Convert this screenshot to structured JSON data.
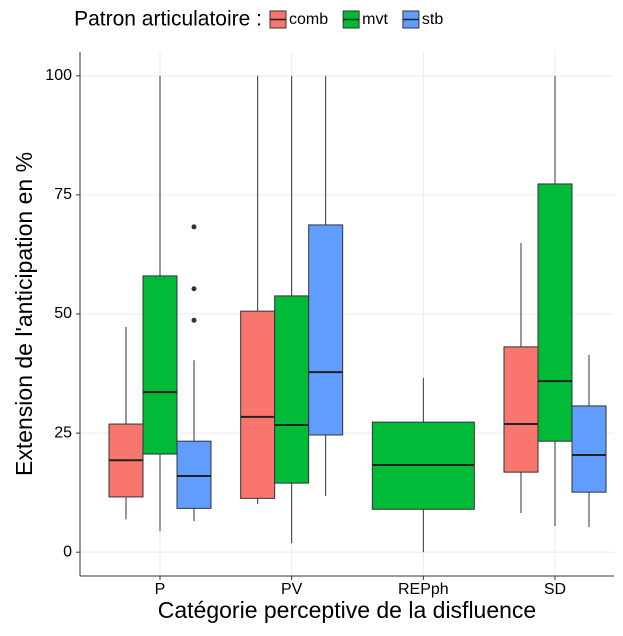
{
  "chart_data": {
    "type": "boxplot",
    "legend_title": "Patron articulatoire :",
    "x_label": "Catégorie perceptive de la disfluence",
    "y_label": "Extension de l'anticipation en %",
    "categories": [
      "P",
      "PV",
      "REPph",
      "SD"
    ],
    "ylim": [
      -5,
      105
    ],
    "yticks": [
      0,
      25,
      50,
      75,
      100
    ],
    "grid": true,
    "legend_position": "top",
    "series": [
      {
        "name": "comb",
        "color": "#F8766D",
        "values": [
          {
            "low": 6.9,
            "q1": 11.6,
            "median": 19.3,
            "q3": 26.9,
            "high": 47.3
          },
          {
            "low": 10.1,
            "q1": 11.3,
            "median": 28.4,
            "q3": 50.6,
            "high": 100
          },
          null,
          {
            "low": 8.2,
            "q1": 16.8,
            "median": 26.9,
            "q3": 43.1,
            "high": 64.9
          }
        ],
        "outliers": [
          [],
          [],
          [],
          []
        ]
      },
      {
        "name": "mvt",
        "color": "#00BA38",
        "values": [
          {
            "low": 4.4,
            "q1": 20.6,
            "median": 33.6,
            "q3": 58,
            "high": 100
          },
          {
            "low": 1.9,
            "q1": 14.5,
            "median": 26.7,
            "q3": 53.8,
            "high": 100
          },
          {
            "low": 0,
            "q1": 9,
            "median": 18.3,
            "q3": 27.3,
            "high": 36.6
          },
          {
            "low": 5.5,
            "q1": 23.3,
            "median": 35.9,
            "q3": 77.3,
            "high": 100
          }
        ],
        "outliers": [
          [],
          [],
          [],
          []
        ]
      },
      {
        "name": "stb",
        "color": "#619CFF",
        "values": [
          {
            "low": 6.5,
            "q1": 9.2,
            "median": 16,
            "q3": 23.3,
            "high": 40.3
          },
          {
            "low": 11.8,
            "q1": 24.6,
            "median": 37.8,
            "q3": 68.7,
            "high": 100
          },
          null,
          {
            "low": 5.3,
            "q1": 12.6,
            "median": 20.4,
            "q3": 30.7,
            "high": 41.4
          }
        ],
        "outliers": [
          [
            68.3,
            55.3,
            48.7
          ],
          [],
          [],
          []
        ]
      }
    ]
  }
}
